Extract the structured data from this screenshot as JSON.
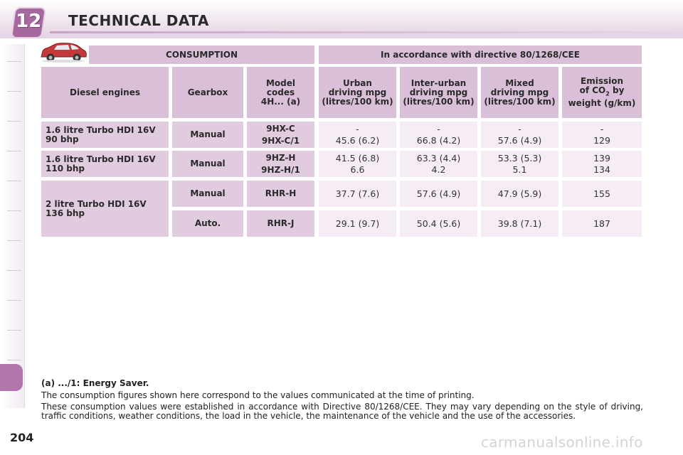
{
  "header": {
    "chapter_number": "12",
    "title": "TECHNICAL DATA"
  },
  "table": {
    "group_headers": {
      "consumption": "CONSUMPTION",
      "directive": "In accordance with directive 80/1268/CEE"
    },
    "columns": {
      "engines": "Diesel engines",
      "gearbox": "Gearbox",
      "model_codes": [
        "Model",
        "codes",
        "4H... (a)"
      ],
      "urban": [
        "Urban",
        "driving mpg",
        "(litres/100 km)"
      ],
      "inter_urban": [
        "Inter-urban",
        "driving mpg",
        "(litres/100 km)"
      ],
      "mixed": [
        "Mixed",
        "driving mpg",
        "(litres/100 km)"
      ],
      "emission": {
        "line1": "Emission",
        "line2_pre": "of CO",
        "line2_sub": "2",
        "line2_post": " by",
        "line3": "weight (g/km)"
      }
    },
    "rows": [
      {
        "engine": [
          "1.6 litre Turbo HDI 16V",
          "90 bhp"
        ],
        "gearbox": "Manual",
        "codes": [
          "9HX-C",
          "9HX-C/1"
        ],
        "urban": [
          "-",
          "45.6 (6.2)"
        ],
        "inter_urban": [
          "-",
          "66.8 (4.2)"
        ],
        "mixed": [
          "-",
          "57.6 (4.9)"
        ],
        "emission": [
          "-",
          "129"
        ]
      },
      {
        "engine": [
          "1.6 litre Turbo HDI 16V",
          "110 bhp"
        ],
        "gearbox": "Manual",
        "codes": [
          "9HZ-H",
          "9HZ-H/1"
        ],
        "urban": [
          "41.5 (6.8)",
          "6.6"
        ],
        "inter_urban": [
          "63.3 (4.4)",
          "4.2"
        ],
        "mixed": [
          "53.3 (5.3)",
          "5.1"
        ],
        "emission": [
          "139",
          "134"
        ]
      },
      {
        "engine": [
          "2 litre Turbo HDI 16V",
          "136 bhp"
        ],
        "sub_rows": [
          {
            "gearbox": "Manual",
            "codes": "RHR-H",
            "urban": "37.7 (7.6)",
            "inter_urban": "57.6 (4.9)",
            "mixed": "47.9 (5.9)",
            "emission": "155"
          },
          {
            "gearbox": "Auto.",
            "codes": "RHR-J",
            "urban": "29.1 (9.7)",
            "inter_urban": "50.4 (5.6)",
            "mixed": "39.8 (7.1)",
            "emission": "187"
          }
        ]
      }
    ]
  },
  "notes": {
    "title": "(a) .../1: Energy Saver.",
    "paragraph1": "The consumption figures shown here correspond to the values communicated at the time of printing.",
    "paragraph2": "These consumption values were established in accordance with Directive 80/1268/CEE. They may vary depending on the style of driving, traffic conditions, weather conditions, the load in the vehicle, the maintenance of the vehicle and the use of the accessories."
  },
  "page_number": "204",
  "watermark": "carmanualsonline.info",
  "colors": {
    "accent": "#a569a0",
    "header_cell": "#d9bfd7",
    "label_cell": "#e1cbdf",
    "value_cell": "#f6ecf5"
  },
  "icons": {
    "car": "car-icon"
  }
}
